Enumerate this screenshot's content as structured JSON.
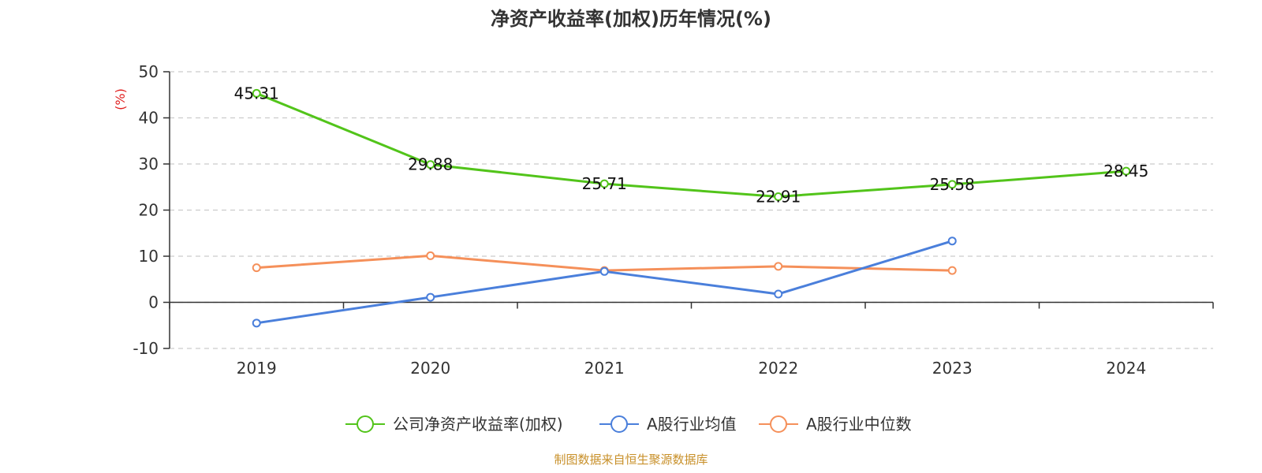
{
  "chart_data": {
    "type": "line",
    "title": "净资产收益率(加权)历年情况(%)",
    "ylabel": "(%)",
    "categories": [
      "2019",
      "2020",
      "2021",
      "2022",
      "2023",
      "2024"
    ],
    "ylim": [
      -10,
      50
    ],
    "yticks": [
      -10,
      0,
      10,
      20,
      30,
      40,
      50
    ],
    "grid": true,
    "legend_position": "bottom",
    "series": [
      {
        "name": "公司净资产收益率(加权)",
        "color": "#52c41a",
        "values": [
          45.31,
          29.88,
          25.71,
          22.91,
          25.58,
          28.45
        ],
        "labels": [
          "45.31",
          "29.88",
          "25.71",
          "22.91",
          "25.58",
          "28.45"
        ]
      },
      {
        "name": "A股行业均值",
        "color": "#4a7fdb",
        "values": [
          -4.5,
          1.1,
          6.7,
          1.8,
          13.3,
          null
        ]
      },
      {
        "name": "A股行业中位数",
        "color": "#f5905a",
        "values": [
          7.5,
          10.1,
          6.9,
          7.8,
          6.9,
          null
        ]
      }
    ],
    "source": "制图数据来自恒生聚源数据库",
    "source_color": "#c8902a",
    "ylabel_color": "#e02020"
  }
}
